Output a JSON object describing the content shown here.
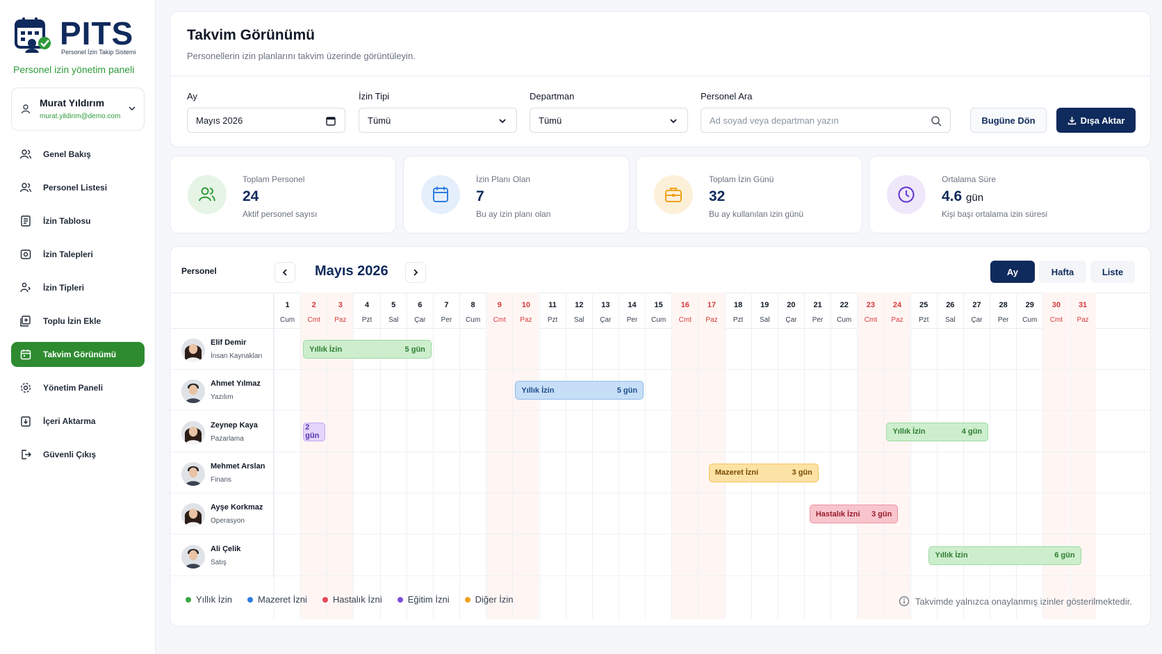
{
  "brand": {
    "name": "PITS",
    "subtitle": "Personel İzin Takip Sistemi",
    "tagline": "Personel izin yönetim paneli"
  },
  "user": {
    "name": "Murat Yıldırım",
    "email": "murat.yildirim@demo.com"
  },
  "nav": [
    {
      "label": "Genel Bakış",
      "icon": "users-icon"
    },
    {
      "label": "Personel Listesi",
      "icon": "users-icon"
    },
    {
      "label": "İzin Tablosu",
      "icon": "table-icon"
    },
    {
      "label": "İzin Talepleri",
      "icon": "request-icon"
    },
    {
      "label": "İzin Tipleri",
      "icon": "types-icon"
    },
    {
      "label": "Toplu İzin Ekle",
      "icon": "bulk-add-icon"
    },
    {
      "label": "Takvim Görünümü",
      "icon": "calendar-icon",
      "active": true
    },
    {
      "label": "Yönetim Paneli",
      "icon": "settings-icon"
    },
    {
      "label": "İçeri Aktarma",
      "icon": "import-icon"
    },
    {
      "label": "Güvenli Çıkış",
      "icon": "logout-icon"
    }
  ],
  "header": {
    "title": "Takvim Görünümü",
    "subtitle": "Personellerin izin planlarını takvim üzerinde görüntüleyin."
  },
  "filters": {
    "month_label": "Ay",
    "month_value": "Mayıs 2026",
    "type_label": "İzin Tipi",
    "type_value": "Tümü",
    "dept_label": "Departman",
    "dept_value": "Tümü",
    "search_label": "Personel Ara",
    "search_placeholder": "Ad soyad veya departman yazın",
    "today_button": "Bugüne Dön",
    "export_button": "Dışa Aktar"
  },
  "stats": [
    {
      "label": "Toplam Personel",
      "value": "24",
      "unit": "",
      "desc": "Aktif personel sayısı",
      "color": "#2e9b3a",
      "bg": "#e6f4e6"
    },
    {
      "label": "İzin Planı Olan",
      "value": "7",
      "unit": "",
      "desc": "Bu ay izin planı olan",
      "color": "#2f7de1",
      "bg": "#e5effb"
    },
    {
      "label": "Toplam İzin Günü",
      "value": "32",
      "unit": "",
      "desc": "Bu ay kullanılan izin günü",
      "color": "#f0a21b",
      "bg": "#fdf0d9"
    },
    {
      "label": "Ortalama Süre",
      "value": "4.6",
      "unit": "gün",
      "desc": "Kişi başı ortalama izin süresi",
      "color": "#6b3fd0",
      "bg": "#efe8fb"
    }
  ],
  "calendar": {
    "person_header": "Personel",
    "month_title": "Mayıs 2026",
    "views": [
      "Ay",
      "Hafta",
      "Liste"
    ],
    "days": [
      {
        "n": "1",
        "d": "Cum"
      },
      {
        "n": "2",
        "d": "Cmt",
        "we": true
      },
      {
        "n": "3",
        "d": "Paz",
        "we": true
      },
      {
        "n": "4",
        "d": "Pzt"
      },
      {
        "n": "5",
        "d": "Sal"
      },
      {
        "n": "6",
        "d": "Çar"
      },
      {
        "n": "7",
        "d": "Per"
      },
      {
        "n": "8",
        "d": "Cum"
      },
      {
        "n": "9",
        "d": "Cmt",
        "we": true
      },
      {
        "n": "10",
        "d": "Paz",
        "we": true
      },
      {
        "n": "11",
        "d": "Pzt"
      },
      {
        "n": "12",
        "d": "Sal"
      },
      {
        "n": "13",
        "d": "Çar"
      },
      {
        "n": "14",
        "d": "Per"
      },
      {
        "n": "15",
        "d": "Cum"
      },
      {
        "n": "16",
        "d": "Cmt",
        "we": true
      },
      {
        "n": "17",
        "d": "Paz",
        "we": true
      },
      {
        "n": "18",
        "d": "Pzt"
      },
      {
        "n": "19",
        "d": "Sal"
      },
      {
        "n": "20",
        "d": "Çar"
      },
      {
        "n": "21",
        "d": "Per"
      },
      {
        "n": "22",
        "d": "Cum"
      },
      {
        "n": "23",
        "d": "Cmt",
        "we": true
      },
      {
        "n": "24",
        "d": "Paz",
        "we": true
      },
      {
        "n": "25",
        "d": "Pzt"
      },
      {
        "n": "26",
        "d": "Sal"
      },
      {
        "n": "27",
        "d": "Çar"
      },
      {
        "n": "28",
        "d": "Per"
      },
      {
        "n": "29",
        "d": "Cum"
      },
      {
        "n": "30",
        "d": "Cmt",
        "we": true
      },
      {
        "n": "31",
        "d": "Paz",
        "we": true
      }
    ],
    "people": [
      {
        "name": "Elif Demir",
        "dept": "İnsan Kaynakları",
        "gender": "f",
        "leaves": [
          {
            "type": "Yıllık İzin",
            "days": "5 gün",
            "start": 2,
            "end": 7,
            "color": "green"
          }
        ]
      },
      {
        "name": "Ahmet Yılmaz",
        "dept": "Yazılım",
        "gender": "m",
        "leaves": [
          {
            "type": "Yıllık İzin",
            "days": "5 gün",
            "start": 10,
            "end": 15,
            "color": "blue"
          }
        ]
      },
      {
        "name": "Zeynep Kaya",
        "dept": "Pazarlama",
        "gender": "f",
        "leaves": [
          {
            "type": "",
            "days": "2 gün",
            "start": 2,
            "end": 3,
            "color": "purple"
          },
          {
            "type": "Yıllık İzin",
            "days": "4 gün",
            "start": 24,
            "end": 28,
            "color": "green"
          }
        ]
      },
      {
        "name": "Mehmet Arslan",
        "dept": "Finans",
        "gender": "m",
        "leaves": [
          {
            "type": "Mazeret İzni",
            "days": "3 gün",
            "start": 17.3,
            "end": 21.6,
            "color": "orange"
          }
        ]
      },
      {
        "name": "Ayşe Korkmaz",
        "dept": "Operasyon",
        "gender": "f",
        "leaves": [
          {
            "type": "Hastalık İzni",
            "days": "3 gün",
            "start": 21.1,
            "end": 24.6,
            "color": "pink"
          }
        ]
      },
      {
        "name": "Ali Çelik",
        "dept": "Satış",
        "gender": "m",
        "leaves": [
          {
            "type": "Yıllık İzin",
            "days": "6 gün",
            "start": 25.6,
            "end": 31.5,
            "color": "green"
          }
        ]
      }
    ]
  },
  "legend": [
    {
      "label": "Yıllık İzin",
      "color": "#3aa845"
    },
    {
      "label": "Mazeret İzni",
      "color": "#2f7de1"
    },
    {
      "label": "Hastalık İzni",
      "color": "#e5485a"
    },
    {
      "label": "Eğitim İzni",
      "color": "#7c4ddb"
    },
    {
      "label": "Diğer İzin",
      "color": "#f0a21b"
    }
  ],
  "note": "Takvimde yalnızca onaylanmış izinler gösterilmektedir."
}
